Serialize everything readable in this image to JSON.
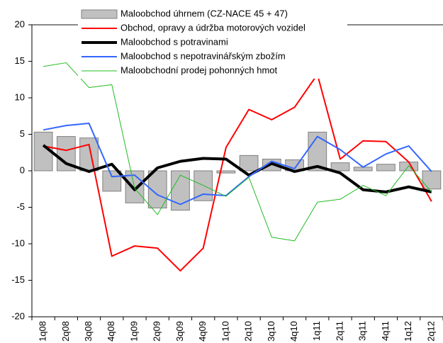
{
  "chart_data": {
    "type": "combo",
    "categories": [
      "1q08",
      "2q08",
      "3q08",
      "4q08",
      "1q09",
      "2q09",
      "3q09",
      "4q09",
      "1q10",
      "2q10",
      "3q10",
      "4q10",
      "1q11",
      "2q11",
      "3q11",
      "4q11",
      "1q12",
      "2q12"
    ],
    "series": [
      {
        "name": "Maloobchod úhrnem (CZ-NACE 45 + 47)",
        "type": "bar",
        "color": "#c0c0c0",
        "values": [
          5.3,
          4.7,
          4.5,
          -2.8,
          -4.4,
          -5.1,
          -5.4,
          -4.1,
          -0.3,
          2.1,
          1.6,
          1.5,
          5.3,
          1.1,
          0.5,
          0.9,
          1.2,
          -2.5
        ]
      },
      {
        "name": "Obchod, opravy a údržba motorových vozidel",
        "type": "line",
        "color": "#ff0000",
        "line_width": 2,
        "values": [
          3.4,
          2.8,
          3.6,
          -11.7,
          -10.3,
          -10.6,
          -13.7,
          -10.6,
          3.2,
          8.4,
          7.0,
          8.7,
          13.2,
          1.6,
          4.1,
          4.0,
          1.2,
          -4.2
        ]
      },
      {
        "name": "Maloobchod s potravinami",
        "type": "line",
        "color": "#000000",
        "line_width": 4,
        "values": [
          3.5,
          1.0,
          -0.1,
          0.9,
          -2.6,
          0.4,
          1.3,
          1.7,
          1.6,
          -0.6,
          1.0,
          -0.1,
          0.6,
          -0.3,
          -2.6,
          -2.9,
          -2.2,
          -2.9
        ]
      },
      {
        "name": "Maloobchod s nepotravinářským zbožím",
        "type": "line",
        "color": "#3366ff",
        "line_width": 2,
        "values": [
          5.6,
          6.2,
          6.5,
          -0.8,
          -0.6,
          -3.3,
          -4.6,
          -3.2,
          -3.4,
          -0.8,
          1.3,
          0.3,
          4.7,
          2.9,
          0.5,
          2.3,
          3.4,
          -0.1
        ]
      },
      {
        "name": "Maloobchodní prodej pohonných hmot",
        "type": "line",
        "color": "#22bb22",
        "line_width": 1,
        "values": [
          14.3,
          14.8,
          11.4,
          11.8,
          -2.4,
          -6.0,
          -0.6,
          -2.0,
          -3.5,
          -0.9,
          -9.1,
          -9.6,
          -4.3,
          -3.9,
          -2.0,
          -3.4,
          0.7,
          -2.9
        ]
      }
    ],
    "ylim": [
      -20,
      20
    ],
    "yticks": [
      -20,
      -15,
      -10,
      -5,
      0,
      5,
      10,
      15,
      20
    ]
  }
}
